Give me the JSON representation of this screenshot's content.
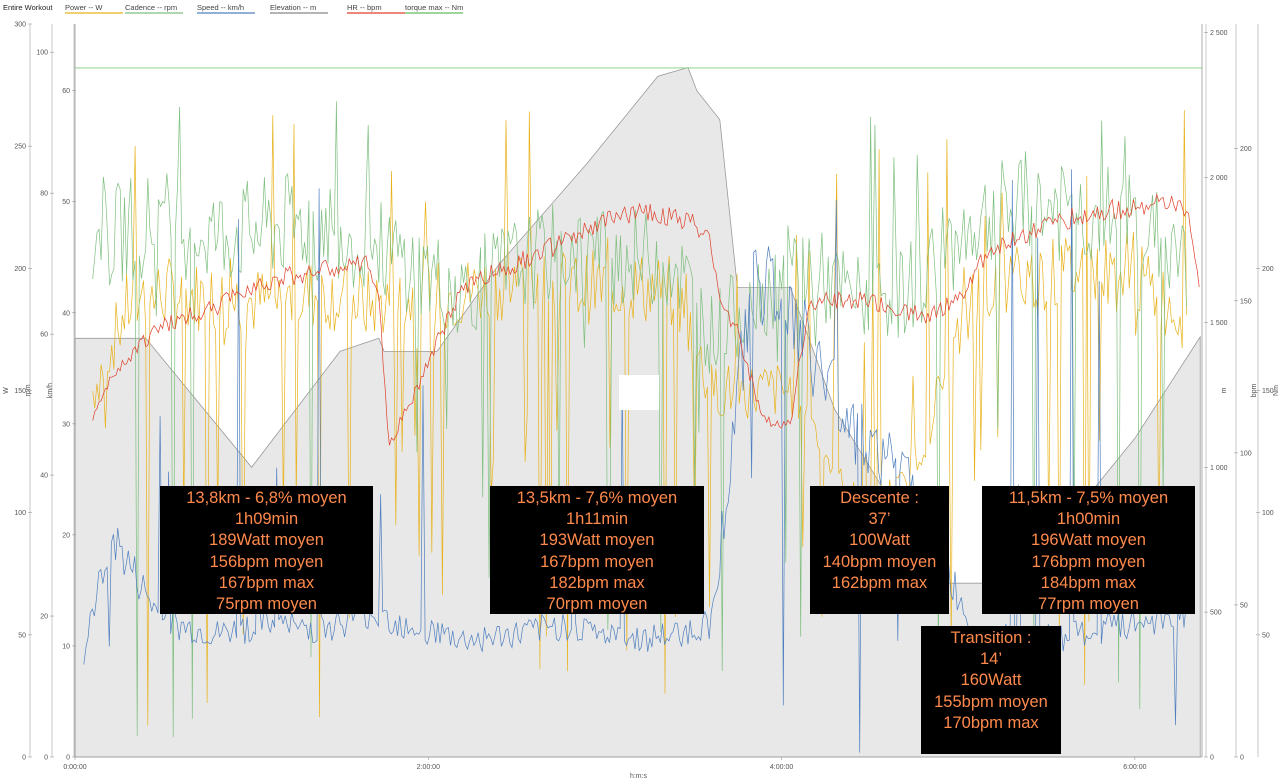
{
  "workout_label": "Entire Workout",
  "legend": [
    {
      "label": "Power  -- W",
      "color": "#e8b21c"
    },
    {
      "label": "Cadence  -- rpm",
      "color": "#80c080"
    },
    {
      "label": "Speed  -- km/h",
      "color": "#4f7fbf"
    },
    {
      "label": "Elevation  -- m",
      "color": "#888888"
    },
    {
      "label": "HR  -- bpm",
      "color": "#e0402a"
    },
    {
      "label": "torque max  -- Nm",
      "color": "#5fbf5f"
    }
  ],
  "chart_data": {
    "type": "line",
    "xlabel": "h:m:s",
    "x_ticks": [
      "0:00:00",
      "2:00:00",
      "4:00:00",
      "6:00:00"
    ],
    "x_range_hours": [
      0,
      6.38
    ],
    "axes": [
      {
        "name": "power",
        "unit": "W",
        "range": [
          0,
          300
        ],
        "ticks": [
          "0",
          "50",
          "100",
          "150",
          "200",
          "250",
          "300"
        ]
      },
      {
        "name": "cadence",
        "unit": "rpm",
        "range": [
          0,
          104
        ],
        "ticks": [
          "0",
          "20",
          "40",
          "60",
          "80",
          "100"
        ]
      },
      {
        "name": "speed",
        "unit": "km/h",
        "range": [
          0,
          66
        ],
        "ticks": [
          "0",
          "10",
          "20",
          "30",
          "40",
          "50",
          "60"
        ]
      },
      {
        "name": "elevation",
        "unit": "m",
        "range": [
          0,
          2530
        ],
        "ticks": [
          "0",
          "500",
          "1 000",
          "1 500",
          "2 000",
          "2 500"
        ]
      },
      {
        "name": "hr",
        "unit": "bpm",
        "range": [
          0,
          241
        ],
        "ticks": [
          "0",
          "50",
          "100",
          "150",
          "200"
        ]
      },
      {
        "name": "torque",
        "unit": "Nm",
        "range": [
          0,
          300
        ],
        "ticks": [
          "50",
          "100",
          "150",
          "200"
        ]
      }
    ],
    "series": [
      {
        "name": "Elevation",
        "values_x_h": [
          0,
          0.05,
          0.4,
          1.0,
          1.5,
          1.72,
          1.75,
          2.05,
          2.4,
          2.9,
          3.3,
          3.47,
          3.52,
          3.65,
          3.75,
          3.85,
          4.05,
          4.3,
          4.6,
          4.92,
          5.2,
          5.6,
          6.0,
          6.37
        ],
        "values_y": [
          1445,
          1445,
          1445,
          1000,
          1400,
          1445,
          1400,
          1400,
          1700,
          2050,
          2350,
          2380,
          2300,
          2200,
          1620,
          1620,
          1620,
          1200,
          900,
          600,
          600,
          800,
          1100,
          1450
        ]
      },
      {
        "name": "HR",
        "values_x_h": [
          0.1,
          0.2,
          0.35,
          0.5,
          0.8,
          1.0,
          1.2,
          1.4,
          1.65,
          1.7,
          1.72,
          1.78,
          2.2,
          2.4,
          2.6,
          2.8,
          3.0,
          3.2,
          3.35,
          3.5,
          3.6,
          3.65,
          3.75,
          3.8,
          3.9,
          4.0,
          4.05,
          4.15,
          4.25,
          4.45,
          4.6,
          4.8,
          5.0,
          5.15,
          5.3,
          5.5,
          5.7,
          5.9,
          6.1,
          6.3,
          6.37
        ],
        "values_y": [
          110,
          125,
          135,
          142,
          148,
          155,
          158,
          160,
          162,
          155,
          150,
          102,
          155,
          160,
          165,
          170,
          176,
          180,
          178,
          175,
          170,
          150,
          140,
          130,
          110,
          110,
          110,
          148,
          150,
          150,
          148,
          145,
          150,
          165,
          170,
          175,
          178,
          180,
          182,
          180,
          150
        ]
      },
      {
        "name": "Power",
        "values_x_h": [
          0.1,
          0.3,
          0.5,
          0.8,
          1.1,
          1.4,
          1.65,
          2.2,
          2.5,
          2.8,
          3.1,
          3.4,
          3.6,
          4.1,
          4.4,
          4.7,
          5.1,
          5.4,
          5.7,
          6.0,
          6.3
        ],
        "values_y": [
          150,
          185,
          190,
          188,
          186,
          190,
          185,
          190,
          195,
          192,
          193,
          190,
          150,
          150,
          100,
          110,
          190,
          195,
          200,
          196,
          180
        ]
      },
      {
        "name": "Cadence",
        "values_x_h": [
          0.1,
          0.3,
          0.5,
          0.8,
          1.1,
          1.4,
          1.65,
          2.2,
          2.5,
          2.8,
          3.1,
          3.4,
          3.6,
          4.1,
          4.4,
          4.7,
          5.1,
          5.4,
          5.7,
          6.0,
          6.3
        ],
        "values_y": [
          72,
          75,
          76,
          74,
          75,
          76,
          73,
          66,
          70,
          72,
          71,
          70,
          60,
          70,
          65,
          66,
          76,
          78,
          77,
          76,
          70
        ]
      },
      {
        "name": "Speed",
        "values_x_h": [
          0.05,
          0.2,
          0.5,
          0.8,
          1.1,
          1.4,
          1.65,
          2.2,
          2.5,
          2.8,
          3.1,
          3.4,
          3.6,
          3.85,
          4.1,
          4.4,
          4.7,
          5.1,
          5.4,
          5.7,
          6.0,
          6.3
        ],
        "values_y": [
          9,
          20,
          12,
          11,
          12,
          11.5,
          13,
          10.5,
          11,
          12,
          10.5,
          11,
          12,
          45,
          38,
          30,
          25,
          11,
          10.5,
          11,
          12,
          13
        ]
      },
      {
        "name": "torque max",
        "values_x_h": [
          0,
          6.38
        ],
        "values_y": [
          282,
          282
        ]
      }
    ]
  },
  "annotations": [
    {
      "lines": [
        "13,8km - 6,8% moyen",
        "1h09min",
        "189Watt moyen",
        "156bpm moyen",
        "167bpm max",
        "75rpm moyen"
      ]
    },
    {
      "lines": [
        "13,5km - 7,6% moyen",
        "1h11min",
        "193Watt moyen",
        "167bpm moyen",
        "182bpm max",
        "70rpm moyen"
      ]
    },
    {
      "lines": [
        "Descente :",
        "37’",
        "100Watt",
        "140bpm moyen",
        "162bpm max"
      ]
    },
    {
      "lines": [
        "11,5km - 7,5% moyen",
        "1h00min",
        "196Watt moyen",
        "176bpm moyen",
        "184bpm max",
        "77rpm moyen"
      ]
    },
    {
      "lines": [
        "Transition  :",
        "14’",
        "160Watt",
        "155bpm moyen",
        "170bpm max"
      ]
    }
  ]
}
